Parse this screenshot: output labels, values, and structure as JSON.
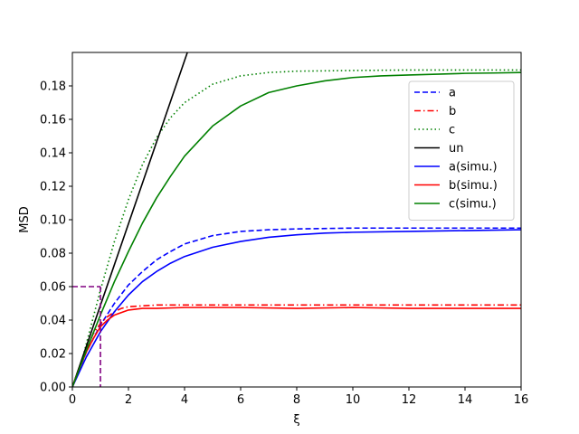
{
  "chart_data": {
    "type": "line",
    "title": "",
    "xlabel": "ξ",
    "ylabel": "MSD",
    "xlim": [
      0,
      16
    ],
    "ylim": [
      0,
      0.2
    ],
    "xticks": [
      0,
      2,
      4,
      6,
      8,
      10,
      12,
      14,
      16
    ],
    "xtick_labels": [
      "0",
      "2",
      "4",
      "6",
      "8",
      "10",
      "12",
      "14",
      "16"
    ],
    "yticks": [
      0.0,
      0.02,
      0.04,
      0.06,
      0.08,
      0.1,
      0.12,
      0.14,
      0.16,
      0.18
    ],
    "ytick_labels": [
      "0.00",
      "0.02",
      "0.04",
      "0.06",
      "0.08",
      "0.10",
      "0.12",
      "0.14",
      "0.16",
      "0.18"
    ],
    "grid": false,
    "legend_position": "upper-right",
    "series": [
      {
        "name": "a",
        "color": "#0000ff",
        "style": "dashed",
        "x": [
          0,
          0.5,
          1,
          1.5,
          2,
          2.5,
          3,
          3.5,
          4,
          5,
          6,
          7,
          8,
          10,
          12,
          14,
          16
        ],
        "y": [
          0,
          0.021,
          0.037,
          0.05,
          0.061,
          0.069,
          0.076,
          0.081,
          0.0855,
          0.0905,
          0.093,
          0.094,
          0.0945,
          0.095,
          0.095,
          0.095,
          0.095
        ]
      },
      {
        "name": "b",
        "color": "#ff0000",
        "style": "dashdot",
        "x": [
          0,
          0.25,
          0.5,
          0.75,
          1,
          1.25,
          1.5,
          1.75,
          2,
          2.5,
          3,
          4,
          6,
          8,
          10,
          12,
          14,
          16
        ],
        "y": [
          0,
          0.012,
          0.023,
          0.032,
          0.038,
          0.042,
          0.045,
          0.047,
          0.048,
          0.0485,
          0.049,
          0.049,
          0.049,
          0.049,
          0.049,
          0.049,
          0.049,
          0.049
        ]
      },
      {
        "name": "c",
        "color": "#008000",
        "style": "dotted",
        "x": [
          0,
          0.25,
          0.5,
          0.75,
          1,
          1.5,
          2,
          2.5,
          3,
          3.5,
          4,
          5,
          6,
          7,
          8,
          10,
          12,
          14,
          16
        ],
        "y": [
          0,
          0.01,
          0.026,
          0.042,
          0.058,
          0.087,
          0.112,
          0.133,
          0.149,
          0.161,
          0.17,
          0.181,
          0.186,
          0.188,
          0.1888,
          0.1892,
          0.1895,
          0.1895,
          0.1895
        ]
      },
      {
        "name": "un",
        "color": "#000000",
        "style": "solid",
        "x": [
          0,
          4.1
        ],
        "y": [
          0,
          0.2
        ]
      },
      {
        "name": "a(simu.)",
        "color": "#0000ff",
        "style": "solid",
        "x": [
          0,
          0.5,
          1,
          1.5,
          2,
          2.5,
          3,
          3.5,
          4,
          5,
          6,
          7,
          8,
          9,
          10,
          12,
          14,
          16
        ],
        "y": [
          0,
          0.018,
          0.033,
          0.045,
          0.055,
          0.063,
          0.069,
          0.074,
          0.078,
          0.0835,
          0.087,
          0.0895,
          0.091,
          0.092,
          0.0925,
          0.093,
          0.0935,
          0.094
        ]
      },
      {
        "name": "b(simu.)",
        "color": "#ff0000",
        "style": "solid",
        "x": [
          0,
          0.25,
          0.5,
          0.75,
          1,
          1.25,
          1.5,
          2,
          2.5,
          3,
          4,
          6,
          8,
          10,
          12,
          14,
          16
        ],
        "y": [
          0,
          0.011,
          0.021,
          0.029,
          0.036,
          0.04,
          0.043,
          0.046,
          0.047,
          0.047,
          0.0475,
          0.0475,
          0.047,
          0.0475,
          0.047,
          0.047,
          0.047
        ]
      },
      {
        "name": "c(simu.)",
        "color": "#008000",
        "style": "solid",
        "x": [
          0,
          0.5,
          1,
          1.5,
          2,
          2.5,
          3,
          3.5,
          4,
          5,
          6,
          7,
          8,
          9,
          10,
          11,
          12,
          13,
          14,
          15,
          16
        ],
        "y": [
          0,
          0.022,
          0.043,
          0.063,
          0.081,
          0.098,
          0.113,
          0.126,
          0.138,
          0.156,
          0.168,
          0.176,
          0.18,
          0.183,
          0.185,
          0.186,
          0.1865,
          0.187,
          0.1875,
          0.1877,
          0.188
        ]
      }
    ],
    "annotations": [
      {
        "type": "dashed-guide",
        "color": "#800080",
        "x": 1,
        "y": 0.06
      }
    ]
  }
}
